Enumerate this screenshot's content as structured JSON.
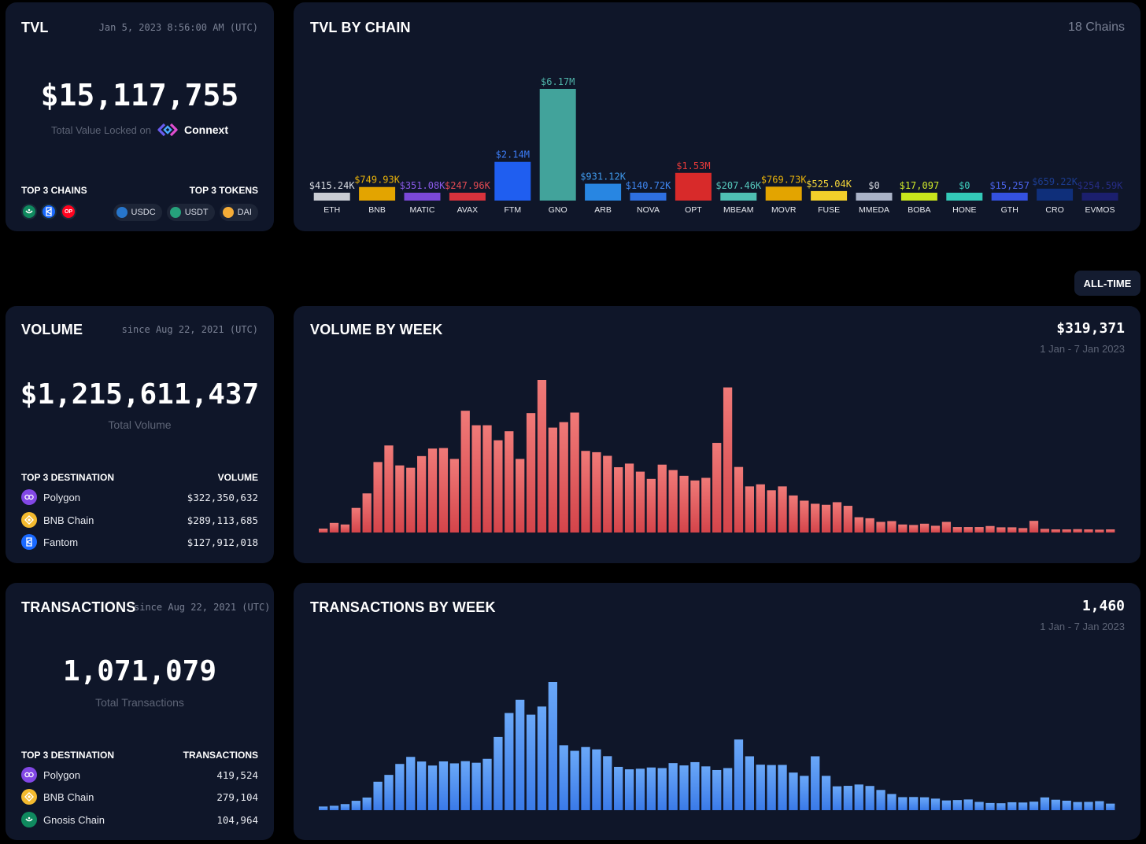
{
  "tvl": {
    "title": "TVL",
    "timestamp": "Jan 5, 2023 8:56:00 AM (UTC)",
    "value": "$15,117,755",
    "caption": "Total Value Locked on",
    "brand": "Connext",
    "top_chains_label": "TOP 3 CHAINS",
    "top_tokens_label": "TOP 3 TOKENS",
    "top_chains": [
      {
        "icon": "gnosis-icon",
        "color": "#0f8a5f",
        "glyph": ""
      },
      {
        "icon": "fantom-icon",
        "color": "#1969ff",
        "glyph": ""
      },
      {
        "icon": "optimism-icon",
        "color": "#ff0420",
        "glyph": "OP"
      }
    ],
    "top_tokens": [
      {
        "label": "USDC",
        "color": "#2775ca"
      },
      {
        "label": "USDT",
        "color": "#26a17b"
      },
      {
        "label": "DAI",
        "color": "#f5ac37"
      }
    ]
  },
  "tvl_by_chain": {
    "title": "TVL BY CHAIN",
    "count": "18 Chains"
  },
  "range_button": "ALL-TIME",
  "volume": {
    "title": "VOLUME",
    "since": "since Aug 22, 2021 (UTC)",
    "value": "$1,215,611,437",
    "caption": "Total Volume",
    "dest_label": "TOP 3 DESTINATION",
    "metric_label": "VOLUME",
    "destinations": [
      {
        "name": "Polygon",
        "value": "$322,350,632",
        "color": "#8247e5"
      },
      {
        "name": "BNB Chain",
        "value": "$289,113,685",
        "color": "#f3ba2f"
      },
      {
        "name": "Fantom",
        "value": "$127,912,018",
        "color": "#1969ff"
      }
    ]
  },
  "volume_by_week": {
    "title": "VOLUME BY WEEK",
    "latest_value": "$319,371",
    "latest_range": "1 Jan - 7 Jan 2023"
  },
  "transactions": {
    "title": "TRANSACTIONS",
    "since": "since Aug 22, 2021 (UTC)",
    "value": "1,071,079",
    "caption": "Total Transactions",
    "dest_label": "TOP 3 DESTINATION",
    "metric_label": "TRANSACTIONS",
    "destinations": [
      {
        "name": "Polygon",
        "value": "419,524",
        "color": "#8247e5"
      },
      {
        "name": "BNB Chain",
        "value": "279,104",
        "color": "#f3ba2f"
      },
      {
        "name": "Gnosis Chain",
        "value": "104,964",
        "color": "#0f8a5f"
      }
    ]
  },
  "transactions_by_week": {
    "title": "TRANSACTIONS BY WEEK",
    "latest_value": "1,460",
    "latest_range": "1 Jan - 7 Jan 2023"
  },
  "chart_data": [
    {
      "type": "bar",
      "title": "TVL BY CHAIN",
      "categories": [
        "ETH",
        "BNB",
        "MATIC",
        "AVAX",
        "FTM",
        "GNO",
        "ARB",
        "NOVA",
        "OPT",
        "MBEAM",
        "MOVR",
        "FUSE",
        "MMEDA",
        "BOBA",
        "HONE",
        "GTH",
        "CRO",
        "EVMOS"
      ],
      "values": [
        415240,
        749930,
        351080,
        247960,
        2140000,
        6170000,
        931120,
        140720,
        1530000,
        207460,
        769730,
        525040,
        0,
        17097,
        0,
        15257,
        659220,
        254590
      ],
      "labels": [
        "$415.24K",
        "$749.93K",
        "$351.08K",
        "$247.96K",
        "$2.14M",
        "$6.17M",
        "$931.12K",
        "$140.72K",
        "$1.53M",
        "$207.46K",
        "$769.73K",
        "$525.04K",
        "$0",
        "$17,097",
        "$0",
        "$15,257",
        "$659.22K",
        "$254.59K"
      ],
      "colors": [
        "#c9ccd3",
        "#e3a400",
        "#7a48d8",
        "#d8323c",
        "#1f5ef0",
        "#42a39b",
        "#2886e2",
        "#2e6fe0",
        "#d82a2a",
        "#4fbfb4",
        "#e3a400",
        "#f2cf2a",
        "#aab3c7",
        "#c8e51c",
        "#33c9b8",
        "#3451e0",
        "#0f2f7a",
        "#1b1f6e"
      ],
      "label_colors": [
        "#d8dbe2",
        "#e8b20a",
        "#8a5ae8",
        "#e24a52",
        "#3c7cf5",
        "#4fb3a9",
        "#3f98ea",
        "#3f86f0",
        "#e83a3a",
        "#56c8bc",
        "#e8b20a",
        "#f2d43a",
        "#d8dbe2",
        "#d0ea2a",
        "#3fd2c0",
        "#4a63ea",
        "#1c3c90",
        "#262c84"
      ]
    },
    {
      "type": "bar",
      "title": "VOLUME BY WEEK",
      "values": [
        1.5,
        3.7,
        3.1,
        9.5,
        15.1,
        27.2,
        33.6,
        25.9,
        25.0,
        29.5,
        32.4,
        32.6,
        28.4,
        47.0,
        41.4,
        41.4,
        35.6,
        39.1,
        28.4,
        46.1,
        58.9,
        40.5,
        42.6,
        46.3,
        31.5,
        31.0,
        29.6,
        25.2,
        26.6,
        23.5,
        20.7,
        26.2,
        24.1,
        21.9,
        20.1,
        21.1,
        34.6,
        56.0,
        25.3,
        17.8,
        18.6,
        16.3,
        17.8,
        14.3,
        12.3,
        11.1,
        10.7,
        11.7,
        10.3,
        5.9,
        5.5,
        4.1,
        4.4,
        3.1,
        2.9,
        3.4,
        2.6,
        4.1,
        2.1,
        2.1,
        2.1,
        2.5,
        2.0,
        2.0,
        1.7,
        4.5,
        1.4,
        1.2,
        1.2,
        1.3,
        1.2,
        1.1,
        1.2
      ],
      "latest_value": "$319,371",
      "range": "1 Jan - 7 Jan 2023"
    },
    {
      "type": "bar",
      "title": "TRANSACTIONS BY WEEK",
      "values": [
        3.0,
        3.6,
        5.0,
        7.7,
        10.4,
        23.4,
        29.0,
        38.0,
        43.8,
        40.0,
        36.7,
        40.1,
        38.5,
        40.3,
        39.0,
        42.2,
        60.2,
        79.9,
        90.7,
        78.5,
        85.2,
        105.4,
        53.4,
        48.8,
        51.9,
        50.0,
        44.4,
        35.6,
        33.6,
        34.1,
        35.1,
        34.6,
        38.7,
        36.8,
        39.5,
        36.0,
        33.0,
        34.6,
        58.1,
        44.3,
        37.4,
        37.1,
        37.2,
        30.9,
        28.2,
        44.3,
        28.2,
        19.6,
        20.0,
        21.1,
        19.9,
        16.6,
        13.3,
        10.7,
        10.8,
        10.6,
        9.5,
        8.0,
        8.3,
        8.8,
        6.8,
        5.9,
        5.7,
        6.5,
        6.3,
        7.0,
        10.5,
        8.6,
        7.8,
        6.7,
        6.8,
        7.4,
        5.4
      ],
      "latest_value": "1,460",
      "range": "1 Jan - 7 Jan 2023"
    }
  ]
}
